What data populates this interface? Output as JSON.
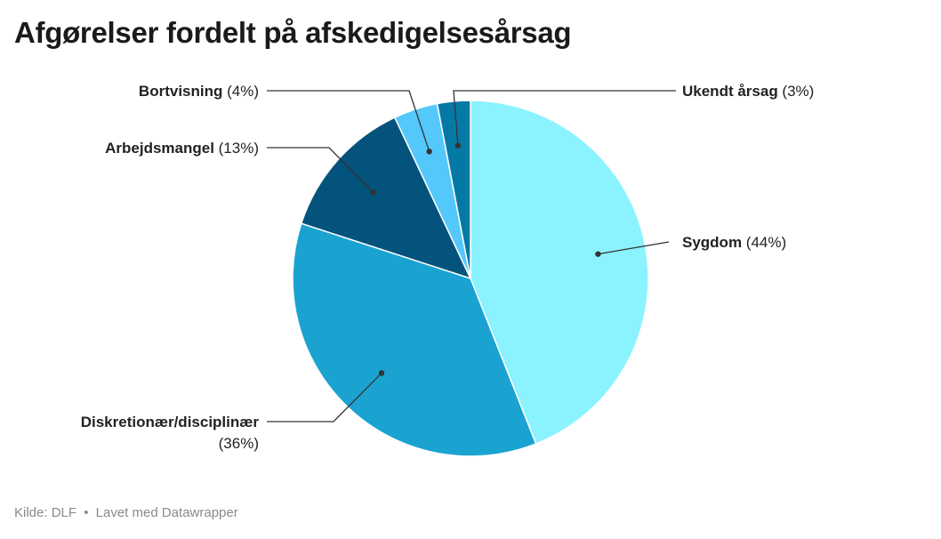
{
  "title": "Afgørelser fordelt på afskedigelsesårsag",
  "footer": {
    "source": "Kilde: DLF",
    "separator": "•",
    "credit": "Lavet med Datawrapper"
  },
  "chart_data": {
    "type": "pie",
    "title": "Afgørelser fordelt på afskedigelsesårsag",
    "slices": [
      {
        "name": "Sygdom",
        "value": 44,
        "display": "(44%)",
        "color": "#8af3ff"
      },
      {
        "name": "Diskretionær/disciplinær",
        "value": 36,
        "display": "(36%)",
        "color": "#1aa3d1"
      },
      {
        "name": "Arbejdsmangel",
        "value": 13,
        "display": "(13%)",
        "color": "#03537c"
      },
      {
        "name": "Bortvisning",
        "value": 4,
        "display": "(4%)",
        "color": "#55c8fb"
      },
      {
        "name": "Ukendt årsag",
        "value": 3,
        "display": "(3%)",
        "color": "#0579a5"
      }
    ],
    "start_angle_deg": 0,
    "direction": "clockwise",
    "legend": "none",
    "labels": "outside with leader lines"
  }
}
